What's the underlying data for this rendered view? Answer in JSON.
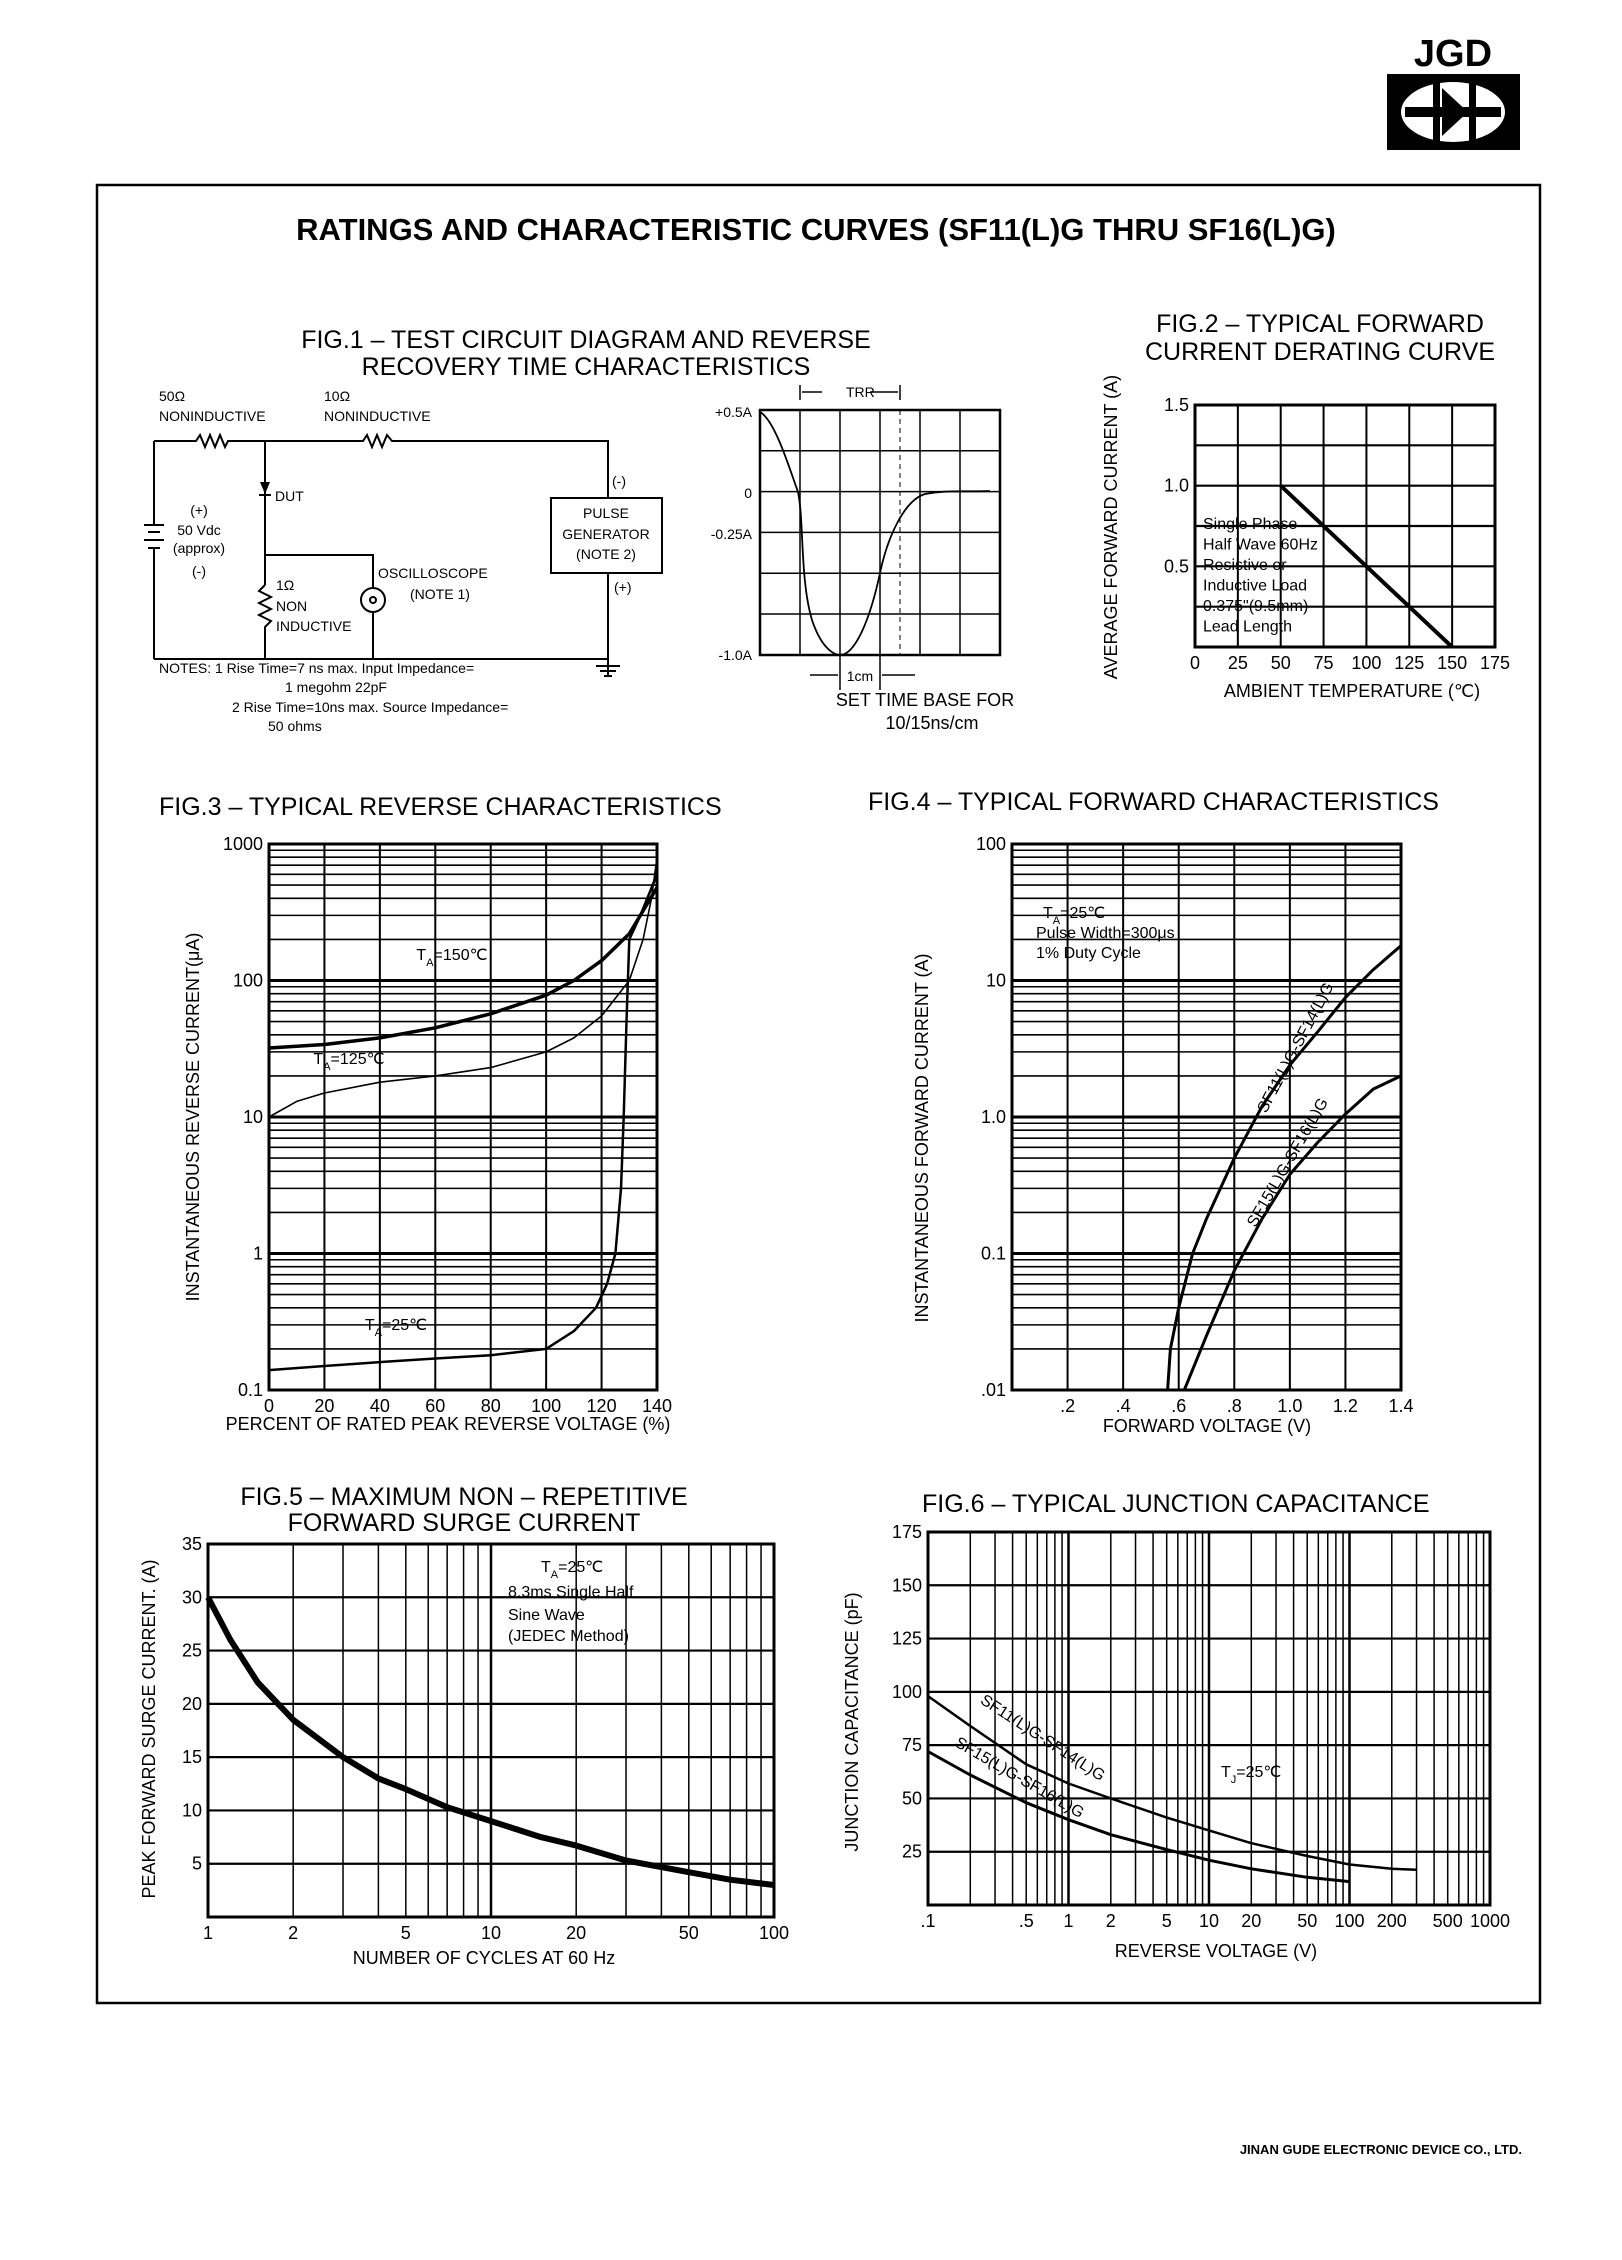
{
  "logo": {
    "text": "JGD"
  },
  "page_title": "RATINGS AND CHARACTERISTIC CURVES (SF11(L)G THRU SF16(L)G)",
  "fig1": {
    "title_lines": [
      "FIG.1 – TEST CIRCUIT DIAGRAM AND REVERSE",
      "RECOVERY TIME CHARACTERISTICS"
    ],
    "r1": [
      "50Ω",
      "NONINDUCTIVE"
    ],
    "r2": [
      "10Ω",
      "NONINDUCTIVE"
    ],
    "dut": "DUT",
    "source": [
      "(+)",
      "50 Vdc",
      "(approx)",
      "(-)"
    ],
    "pulse_generator": [
      "PULSE",
      "GENERATOR",
      "(NOTE 2)"
    ],
    "pg_minus": "(-)",
    "pg_plus": "(+)",
    "oscilloscope": [
      "OSCILLOSCOPE",
      "(NOTE 1)"
    ],
    "r3": [
      "1Ω",
      "NON",
      "INDUCTIVE"
    ],
    "notes": [
      "NOTES: 1 Rise Time=7 ns max. Input Impedance=",
      "1 megohm 22pF",
      "2 Rise Time=10ns max. Source Impedance=",
      "50 ohms"
    ],
    "waveform": {
      "y_labels": [
        "+0.5A",
        "0",
        "-0.25A",
        "-1.0A"
      ],
      "trr": "TRR",
      "cm": "1cm",
      "time_base": [
        "SET TIME BASE FOR",
        "10/15ns/cm"
      ]
    }
  },
  "chart_data": [
    {
      "type": "line",
      "title_lines": [
        "FIG.2 – TYPICAL FORWARD",
        "CURRENT DERATING CURVE"
      ],
      "xlabel": "AMBIENT TEMPERATURE (℃)",
      "ylabel": "AVERAGE FORWARD CURRENT (A)",
      "x_scale": "linear",
      "y_scale": "linear",
      "xlim": [
        0,
        175
      ],
      "ylim": [
        0,
        1.5
      ],
      "x_grid_step": 25,
      "y_grid_step": 0.25,
      "grid": true,
      "x_ticks": [
        {
          "v": 0,
          "label": "0"
        },
        {
          "v": 25,
          "label": "25"
        },
        {
          "v": 50,
          "label": "50"
        },
        {
          "v": 75,
          "label": "75"
        },
        {
          "v": 100,
          "label": "100"
        },
        {
          "v": 125,
          "label": "125"
        },
        {
          "v": 150,
          "label": "150"
        },
        {
          "v": 175,
          "label": "175"
        }
      ],
      "y_ticks": [
        {
          "v": 1.5,
          "label": "1.5"
        },
        {
          "v": 1.0,
          "label": "1.0"
        },
        {
          "v": 0.5,
          "label": "0.5"
        }
      ],
      "series": [
        {
          "points": [
            [
              50,
              1.0
            ],
            [
              150,
              0
            ]
          ]
        }
      ],
      "annotations": [
        {
          "lines": [
            "Single Phase",
            "Half Wave 60Hz",
            "Resistive or",
            "Inductive Load",
            "0.375\"(9.5mm)",
            "Lead Length"
          ]
        }
      ]
    },
    {
      "type": "line",
      "title_lines": [
        "FIG.3 – TYPICAL REVERSE CHARACTERISTICS"
      ],
      "xlabel": "PERCENT OF RATED  PEAK REVERSE VOLTAGE (%)",
      "ylabel": "INSTANTANEOUS REVERSE CURRENT(μA)",
      "x_scale": "linear",
      "y_scale": "log",
      "xlim": [
        0,
        140
      ],
      "ylim": [
        0.1,
        1000
      ],
      "x_grid_step": 20,
      "grid": true,
      "x_ticks": [
        {
          "v": 0,
          "label": "0"
        },
        {
          "v": 20,
          "label": "20"
        },
        {
          "v": 40,
          "label": "40"
        },
        {
          "v": 60,
          "label": "60"
        },
        {
          "v": 80,
          "label": "80"
        },
        {
          "v": 100,
          "label": "100"
        },
        {
          "v": 120,
          "label": "120"
        },
        {
          "v": 140,
          "label": "140"
        }
      ],
      "y_ticks": [
        {
          "v": 1000,
          "label": "1000"
        },
        {
          "v": 100,
          "label": "100"
        },
        {
          "v": 10,
          "label": "10"
        },
        {
          "v": 1,
          "label": "1"
        },
        {
          "v": 0.1,
          "label": "0.1"
        }
      ],
      "series": [
        {
          "name": {
            "t": "T",
            "sub": "A",
            "rest": "=150℃"
          },
          "points": [
            [
              0,
              32
            ],
            [
              20,
              34
            ],
            [
              40,
              38
            ],
            [
              60,
              45
            ],
            [
              80,
              57
            ],
            [
              100,
              78
            ],
            [
              110,
              100
            ],
            [
              120,
              140
            ],
            [
              130,
              220
            ],
            [
              140,
              480
            ]
          ]
        },
        {
          "name": {
            "t": "T",
            "sub": "A",
            "rest": "=125℃"
          },
          "points": [
            [
              0,
              10
            ],
            [
              10,
              13
            ],
            [
              20,
              15
            ],
            [
              40,
              18
            ],
            [
              60,
              20
            ],
            [
              80,
              23
            ],
            [
              100,
              30
            ],
            [
              110,
              38
            ],
            [
              120,
              55
            ],
            [
              130,
              100
            ],
            [
              135,
              200
            ],
            [
              138,
              400
            ],
            [
              140,
              800
            ]
          ]
        },
        {
          "name": {
            "t": "T",
            "sub": "A",
            "rest": "=25℃"
          },
          "points": [
            [
              0,
              0.14
            ],
            [
              20,
              0.15
            ],
            [
              40,
              0.16
            ],
            [
              60,
              0.17
            ],
            [
              80,
              0.18
            ],
            [
              100,
              0.2
            ],
            [
              110,
              0.27
            ],
            [
              118,
              0.4
            ],
            [
              122,
              0.6
            ],
            [
              125,
              1
            ],
            [
              127,
              3
            ],
            [
              128,
              10
            ],
            [
              129,
              50
            ],
            [
              130,
              200
            ],
            [
              134,
              300
            ],
            [
              140,
              600
            ]
          ]
        }
      ]
    },
    {
      "type": "line",
      "title_lines": [
        "FIG.4 –  TYPICAL FORWARD CHARACTERISTICS"
      ],
      "xlabel": "FORWARD VOLTAGE (V)",
      "ylabel": "INSTANTANEOUS FORWARD CURRENT (A)",
      "x_scale": "linear",
      "y_scale": "log",
      "xlim": [
        0,
        1.4
      ],
      "ylim": [
        0.01,
        100
      ],
      "x_grid_step": 0.2,
      "grid": true,
      "x_ticks": [
        {
          "v": 0.2,
          "label": ".2"
        },
        {
          "v": 0.4,
          "label": ".4"
        },
        {
          "v": 0.6,
          "label": ".6"
        },
        {
          "v": 0.8,
          "label": ".8"
        },
        {
          "v": 1.0,
          "label": "1.0"
        },
        {
          "v": 1.2,
          "label": "1.2"
        },
        {
          "v": 1.4,
          "label": "1.4"
        }
      ],
      "y_ticks": [
        {
          "v": 100,
          "label": "100"
        },
        {
          "v": 10,
          "label": "10"
        },
        {
          "v": 1,
          "label": "1.0"
        },
        {
          "v": 0.1,
          "label": "0.1"
        },
        {
          "v": 0.01,
          "label": ".01"
        }
      ],
      "series": [
        {
          "name": "SF11(L)G-SF14(L)G",
          "points": [
            [
              0.56,
              0.01
            ],
            [
              0.57,
              0.02
            ],
            [
              0.6,
              0.04
            ],
            [
              0.65,
              0.1
            ],
            [
              0.7,
              0.18
            ],
            [
              0.8,
              0.5
            ],
            [
              0.9,
              1.2
            ],
            [
              1.0,
              2.4
            ],
            [
              1.1,
              4.2
            ],
            [
              1.2,
              7.5
            ],
            [
              1.3,
              12
            ],
            [
              1.4,
              18
            ]
          ]
        },
        {
          "name": "SF15(L)G-SF16(L)G",
          "points": [
            [
              0.62,
              0.01
            ],
            [
              0.7,
              0.025
            ],
            [
              0.8,
              0.075
            ],
            [
              0.9,
              0.18
            ],
            [
              1.0,
              0.38
            ],
            [
              1.1,
              0.65
            ],
            [
              1.2,
              1.05
            ],
            [
              1.3,
              1.6
            ],
            [
              1.4,
              2.0
            ]
          ]
        }
      ],
      "annotations": [
        {
          "t": "T",
          "sub": "A",
          "rest": "=25℃"
        },
        {
          "text": "Pulse Width=300μs"
        },
        {
          "text": "1% Duty Cycle"
        }
      ]
    },
    {
      "type": "line",
      "title_lines": [
        "FIG.5 – MAXIMUM NON – REPETITIVE",
        "FORWARD SURGE CURRENT"
      ],
      "xlabel": "NUMBER OF CYCLES AT 60 Hz",
      "ylabel": "PEAK FORWARD SURGE CURRENT. (A)",
      "x_scale": "log",
      "y_scale": "linear",
      "xlim": [
        1,
        100
      ],
      "ylim": [
        0,
        35
      ],
      "y_grid_step": 5,
      "grid": true,
      "x_ticks": [
        {
          "v": 1,
          "label": "1"
        },
        {
          "v": 2,
          "label": "2"
        },
        {
          "v": 5,
          "label": "5"
        },
        {
          "v": 10,
          "label": "10"
        },
        {
          "v": 20,
          "label": "20"
        },
        {
          "v": 50,
          "label": "50"
        },
        {
          "v": 100,
          "label": "100"
        }
      ],
      "y_ticks": [
        {
          "v": 35,
          "label": "35"
        },
        {
          "v": 30,
          "label": "30"
        },
        {
          "v": 25,
          "label": "25"
        },
        {
          "v": 20,
          "label": "20"
        },
        {
          "v": 15,
          "label": "15"
        },
        {
          "v": 10,
          "label": "10"
        },
        {
          "v": 5,
          "label": "5"
        }
      ],
      "series": [
        {
          "points": [
            [
              1,
              30
            ],
            [
              1.2,
              26
            ],
            [
              1.5,
              22
            ],
            [
              2,
              18.5
            ],
            [
              3,
              15
            ],
            [
              4,
              13
            ],
            [
              5,
              12
            ],
            [
              7,
              10.3
            ],
            [
              10,
              9
            ],
            [
              15,
              7.5
            ],
            [
              20,
              6.7
            ],
            [
              30,
              5.3
            ],
            [
              50,
              4.2
            ],
            [
              70,
              3.5
            ],
            [
              100,
              3
            ]
          ]
        }
      ],
      "annotations": [
        {
          "t": "T",
          "sub": "A",
          "rest": "=25℃"
        },
        {
          "text": "8.3ms Single Half"
        },
        {
          "text": "Sine Wave"
        },
        {
          "text": "(JEDEC Method)"
        }
      ]
    },
    {
      "type": "line",
      "title_lines": [
        "FIG.6 – TYPICAL JUNCTION CAPACITANCE"
      ],
      "xlabel": "REVERSE VOLTAGE (V)",
      "ylabel": "JUNCTION CAPACITANCE (pF)",
      "x_scale": "log",
      "y_scale": "linear",
      "xlim": [
        0.1,
        1000
      ],
      "ylim": [
        0,
        175
      ],
      "y_grid_step": 25,
      "grid": true,
      "x_ticks": [
        {
          "v": 0.1,
          "label": ".1"
        },
        {
          "v": 0.5,
          "label": ".5"
        },
        {
          "v": 1,
          "label": "1"
        },
        {
          "v": 2,
          "label": "2"
        },
        {
          "v": 5,
          "label": "5"
        },
        {
          "v": 10,
          "label": "10"
        },
        {
          "v": 20,
          "label": "20"
        },
        {
          "v": 50,
          "label": "50"
        },
        {
          "v": 100,
          "label": "100"
        },
        {
          "v": 200,
          "label": "200"
        },
        {
          "v": 500,
          "label": "500"
        },
        {
          "v": 1000,
          "label": "1000"
        }
      ],
      "y_ticks": [
        {
          "v": 175,
          "label": "175"
        },
        {
          "v": 150,
          "label": "150"
        },
        {
          "v": 125,
          "label": "125"
        },
        {
          "v": 100,
          "label": "100"
        },
        {
          "v": 75,
          "label": "75"
        },
        {
          "v": 50,
          "label": "50"
        },
        {
          "v": 25,
          "label": "25"
        }
      ],
      "series": [
        {
          "name": "SF11(L)G-SF14(L)G",
          "points": [
            [
              0.1,
              98
            ],
            [
              0.2,
              84
            ],
            [
              0.5,
              66
            ],
            [
              1,
              57
            ],
            [
              2,
              50
            ],
            [
              5,
              41
            ],
            [
              10,
              35
            ],
            [
              20,
              29
            ],
            [
              50,
              23
            ],
            [
              100,
              19
            ],
            [
              200,
              17
            ],
            [
              300,
              16.5
            ]
          ]
        },
        {
          "name": "SF15(L)G-SF16(L)G",
          "points": [
            [
              0.1,
              72
            ],
            [
              0.2,
              61
            ],
            [
              0.5,
              48
            ],
            [
              1,
              40
            ],
            [
              2,
              33
            ],
            [
              5,
              26
            ],
            [
              10,
              21
            ],
            [
              20,
              17
            ],
            [
              50,
              13
            ],
            [
              100,
              11
            ]
          ]
        }
      ],
      "annotations": [
        {
          "t": "T",
          "sub": "J",
          "rest": "=25℃"
        }
      ]
    }
  ],
  "footer": "JINAN GUDE ELECTRONIC DEVICE CO., LTD."
}
